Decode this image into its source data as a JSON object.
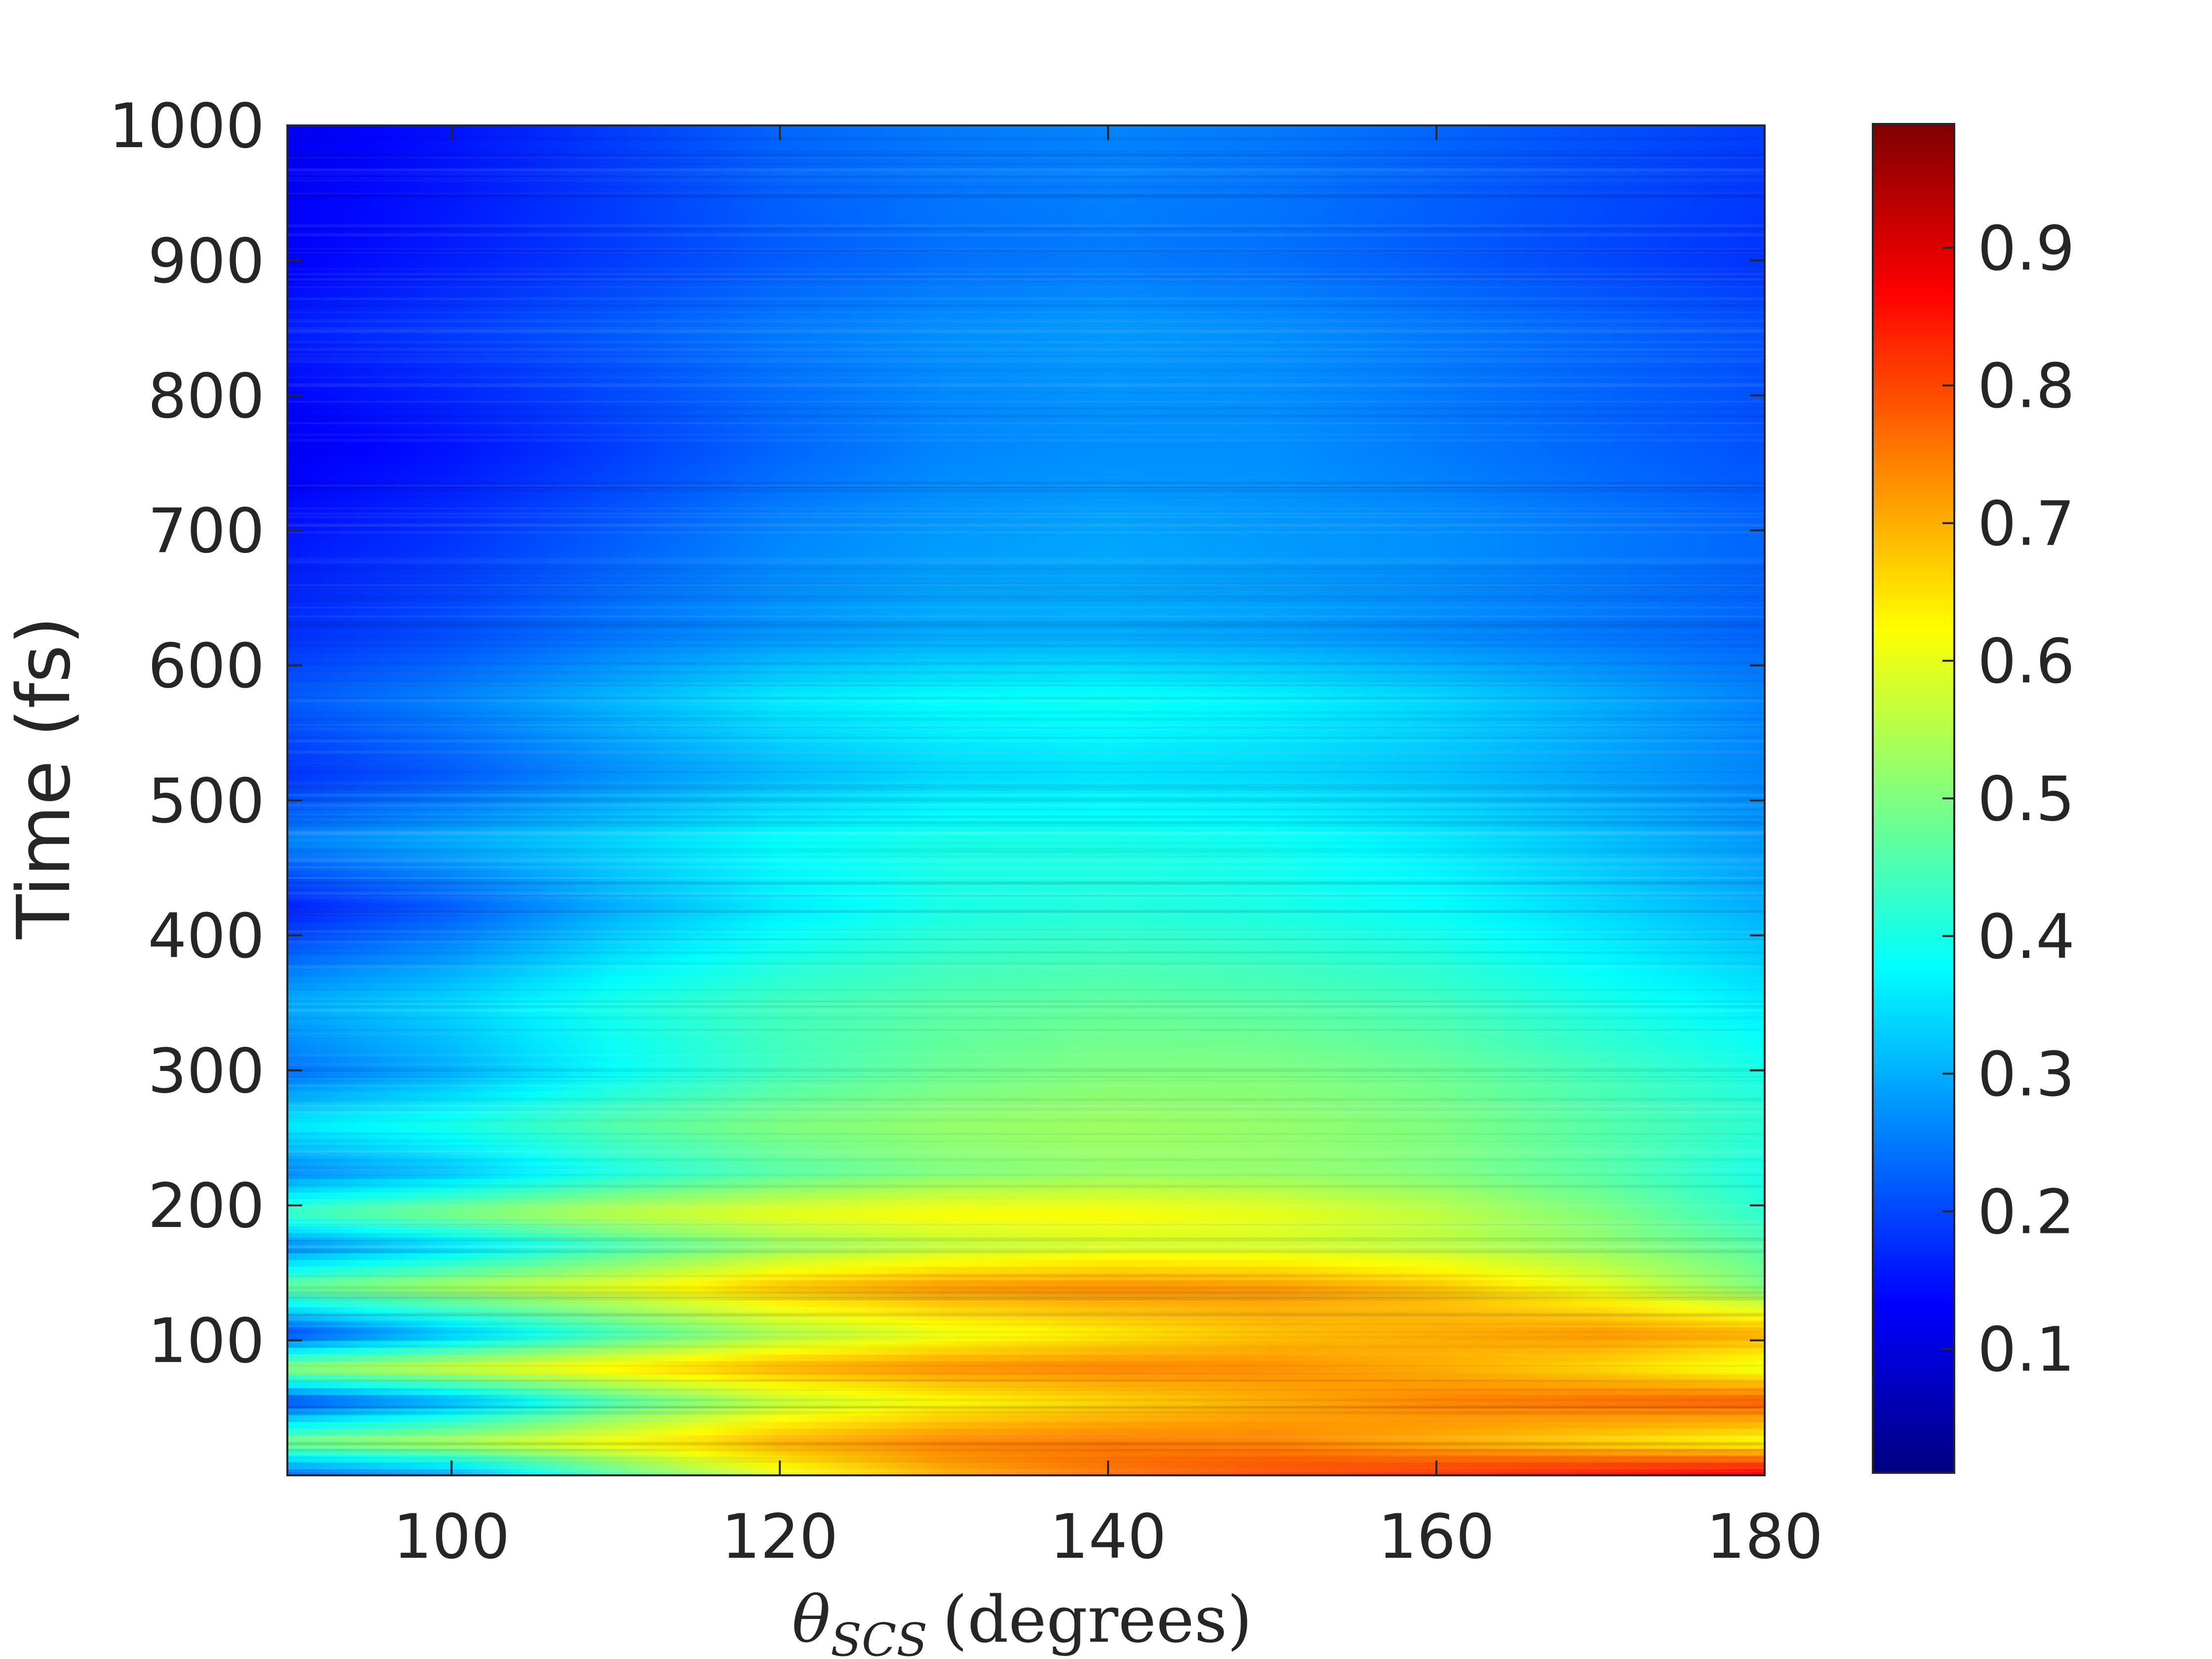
{
  "chart_data": {
    "type": "heatmap",
    "title": "",
    "xlabel": {
      "symbol": "θ",
      "subscript": "SCS",
      "unit": "(degrees)"
    },
    "ylabel": "Time (fs)",
    "xlim": [
      90,
      180
    ],
    "ylim": [
      0,
      1000
    ],
    "x_ticks": [
      100,
      120,
      140,
      160,
      180
    ],
    "y_ticks": [
      100,
      200,
      300,
      400,
      500,
      600,
      700,
      800,
      900,
      1000
    ],
    "colormap": "jet",
    "colorbar": {
      "min": 0.01,
      "max": 0.99,
      "ticks": [
        "0.1",
        "0.2",
        "0.3",
        "0.4",
        "0.5",
        "0.6",
        "0.7",
        "0.8",
        "0.9"
      ]
    },
    "x_samples": [
      90,
      100,
      110,
      120,
      130,
      140,
      150,
      160,
      170,
      180
    ],
    "rows": [
      {
        "t": 0,
        "values": [
          0.22,
          0.28,
          0.45,
          0.6,
          0.7,
          0.76,
          0.8,
          0.83,
          0.86,
          0.9
        ]
      },
      {
        "t": 25,
        "values": [
          0.5,
          0.55,
          0.62,
          0.7,
          0.74,
          0.75,
          0.74,
          0.7,
          0.66,
          0.62
        ]
      },
      {
        "t": 55,
        "values": [
          0.2,
          0.3,
          0.45,
          0.56,
          0.62,
          0.66,
          0.7,
          0.74,
          0.76,
          0.78
        ]
      },
      {
        "t": 80,
        "values": [
          0.52,
          0.58,
          0.64,
          0.7,
          0.73,
          0.74,
          0.73,
          0.7,
          0.66,
          0.6
        ]
      },
      {
        "t": 105,
        "values": [
          0.2,
          0.32,
          0.44,
          0.54,
          0.6,
          0.64,
          0.68,
          0.7,
          0.72,
          0.7
        ]
      },
      {
        "t": 140,
        "values": [
          0.48,
          0.54,
          0.6,
          0.68,
          0.72,
          0.73,
          0.72,
          0.68,
          0.6,
          0.5
        ]
      },
      {
        "t": 170,
        "values": [
          0.26,
          0.34,
          0.44,
          0.52,
          0.56,
          0.58,
          0.58,
          0.56,
          0.52,
          0.46
        ]
      },
      {
        "t": 195,
        "values": [
          0.44,
          0.5,
          0.56,
          0.6,
          0.62,
          0.62,
          0.6,
          0.56,
          0.5,
          0.42
        ]
      },
      {
        "t": 225,
        "values": [
          0.26,
          0.32,
          0.4,
          0.46,
          0.5,
          0.52,
          0.52,
          0.5,
          0.46,
          0.4
        ]
      },
      {
        "t": 260,
        "values": [
          0.36,
          0.4,
          0.46,
          0.5,
          0.52,
          0.53,
          0.52,
          0.5,
          0.46,
          0.42
        ]
      },
      {
        "t": 300,
        "values": [
          0.24,
          0.3,
          0.38,
          0.44,
          0.48,
          0.5,
          0.5,
          0.48,
          0.44,
          0.4
        ]
      },
      {
        "t": 350,
        "values": [
          0.3,
          0.34,
          0.4,
          0.44,
          0.46,
          0.47,
          0.46,
          0.44,
          0.4,
          0.36
        ]
      },
      {
        "t": 420,
        "values": [
          0.16,
          0.22,
          0.3,
          0.36,
          0.4,
          0.41,
          0.4,
          0.38,
          0.34,
          0.3
        ]
      },
      {
        "t": 470,
        "values": [
          0.26,
          0.3,
          0.34,
          0.38,
          0.4,
          0.4,
          0.39,
          0.36,
          0.32,
          0.28
        ]
      },
      {
        "t": 520,
        "values": [
          0.18,
          0.22,
          0.27,
          0.31,
          0.34,
          0.35,
          0.34,
          0.32,
          0.29,
          0.26
        ]
      },
      {
        "t": 575,
        "values": [
          0.22,
          0.26,
          0.31,
          0.36,
          0.38,
          0.39,
          0.37,
          0.34,
          0.3,
          0.26
        ]
      },
      {
        "t": 620,
        "values": [
          0.18,
          0.21,
          0.25,
          0.28,
          0.3,
          0.3,
          0.29,
          0.27,
          0.25,
          0.23
        ]
      },
      {
        "t": 700,
        "values": [
          0.15,
          0.18,
          0.22,
          0.26,
          0.28,
          0.29,
          0.28,
          0.27,
          0.25,
          0.23
        ]
      },
      {
        "t": 760,
        "values": [
          0.12,
          0.15,
          0.19,
          0.23,
          0.26,
          0.27,
          0.27,
          0.25,
          0.23,
          0.21
        ]
      },
      {
        "t": 850,
        "values": [
          0.16,
          0.19,
          0.22,
          0.25,
          0.27,
          0.28,
          0.27,
          0.25,
          0.23,
          0.21
        ]
      },
      {
        "t": 900,
        "values": [
          0.13,
          0.16,
          0.19,
          0.22,
          0.24,
          0.25,
          0.24,
          0.22,
          0.2,
          0.18
        ]
      },
      {
        "t": 1000,
        "values": [
          0.12,
          0.15,
          0.19,
          0.23,
          0.25,
          0.26,
          0.25,
          0.23,
          0.21,
          0.19
        ]
      }
    ]
  }
}
